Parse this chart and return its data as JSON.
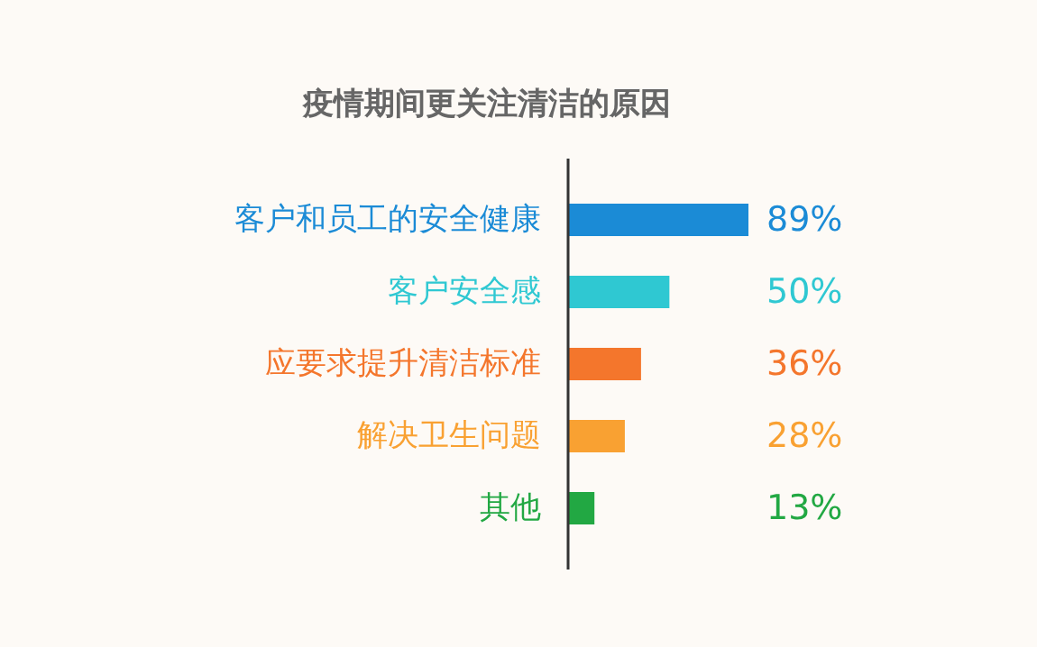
{
  "chart_data": {
    "type": "bar",
    "orientation": "horizontal",
    "title": "疫情期间更关注清洁的原因",
    "categories": [
      "客户和员工的安全健康",
      "客户安全感",
      "应要求提升清洁标准",
      "解决卫生问题",
      "其他"
    ],
    "values": [
      89,
      50,
      36,
      28,
      13
    ],
    "colors": [
      "#1b8bd6",
      "#2fc8d2",
      "#f4762c",
      "#f9a132",
      "#22a843"
    ],
    "value_labels": [
      "89%",
      "50%",
      "36%",
      "28%",
      "13%"
    ]
  }
}
